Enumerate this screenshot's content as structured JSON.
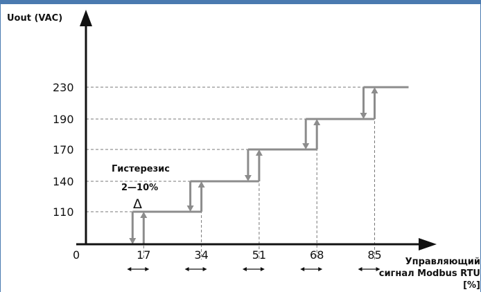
{
  "chart_data": {
    "type": "line",
    "ylabel": "Uout (VAC)",
    "xlabel_lines": [
      "Управляющий",
      "сигнал Modbus RTU",
      "[%]"
    ],
    "origin_label": "0",
    "x_ticks": [
      17,
      34,
      51,
      68,
      85
    ],
    "y_ticks": [
      110,
      140,
      170,
      190,
      230
    ],
    "steps": [
      {
        "x_from": 0,
        "x_to": 17,
        "y": 0
      },
      {
        "x_from": 17,
        "x_to": 34,
        "y": 110
      },
      {
        "x_from": 34,
        "x_to": 51,
        "y": 140
      },
      {
        "x_from": 51,
        "x_to": 68,
        "y": 170
      },
      {
        "x_from": 68,
        "x_to": 85,
        "y": 190
      },
      {
        "x_from": 85,
        "x_to": 95,
        "y": 230
      }
    ],
    "hysteresis": {
      "title": "Гистерезис",
      "range": "2—10%",
      "symbol": "Δ"
    },
    "colors": {
      "step_line": "#8c8c8c",
      "axis": "#111111",
      "grid": "#777777",
      "frame": "#4a7ab0"
    }
  }
}
